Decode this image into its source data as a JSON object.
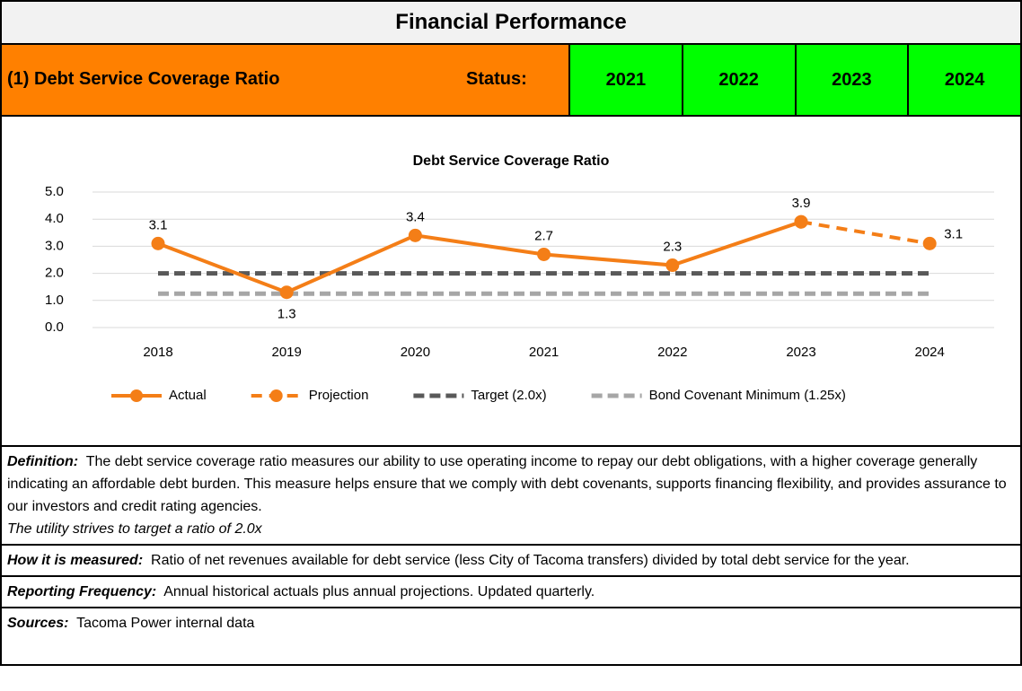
{
  "header": {
    "title": "Financial Performance"
  },
  "status_row": {
    "measure": "(1) Debt Service Coverage Ratio",
    "status_label": "Status:",
    "years": [
      "2021",
      "2022",
      "2023",
      "2024"
    ]
  },
  "chart_data": {
    "type": "line",
    "title": "Debt Service Coverage Ratio",
    "categories": [
      "2018",
      "2019",
      "2020",
      "2021",
      "2022",
      "2023",
      "2024"
    ],
    "series": [
      {
        "name": "Actual",
        "color": "#f47e17",
        "dashed": false,
        "markers": true,
        "values": [
          3.1,
          1.3,
          3.4,
          2.7,
          2.3,
          3.9,
          null
        ]
      },
      {
        "name": "Projection",
        "color": "#f47e17",
        "dashed": true,
        "markers": true,
        "values": [
          null,
          null,
          null,
          null,
          null,
          3.9,
          3.1
        ]
      },
      {
        "name": "Target (2.0x)",
        "color": "#595959",
        "dashed": true,
        "markers": false,
        "values": [
          2.0,
          2.0,
          2.0,
          2.0,
          2.0,
          2.0,
          2.0
        ]
      },
      {
        "name": "Bond Covenant Minimum (1.25x)",
        "color": "#a6a6a6",
        "dashed": true,
        "markers": false,
        "values": [
          1.25,
          1.25,
          1.25,
          1.25,
          1.25,
          1.25,
          1.25
        ]
      }
    ],
    "ylim": [
      0,
      5
    ],
    "yticks": [
      {
        "value": 0,
        "label": "0.0"
      },
      {
        "value": 1,
        "label": "1.0"
      },
      {
        "value": 2,
        "label": "2.0"
      },
      {
        "value": 3,
        "label": "3.0"
      },
      {
        "value": 4,
        "label": "4.0"
      },
      {
        "value": 5,
        "label": "5.0"
      }
    ],
    "grid": true,
    "legend": "bottom"
  },
  "sections": [
    {
      "label": "Definition:",
      "text": "The debt service coverage ratio measures our ability to use operating income to repay our debt obligations, with a higher coverage generally indicating an affordable debt burden. This measure helps ensure that we comply with debt covenants, supports financing flexibility, and provides assurance to our investors and credit rating agencies.",
      "note": "The utility strives to target a ratio of 2.0x"
    },
    {
      "label": "How it is measured:",
      "text": "Ratio of net revenues available for debt service (less City of Tacoma transfers) divided by total debt service for the year."
    },
    {
      "label": "Reporting Frequency:",
      "text": "Annual historical actuals plus annual projections. Updated quarterly."
    },
    {
      "label": "Sources:",
      "text": "Tacoma Power internal data"
    }
  ]
}
